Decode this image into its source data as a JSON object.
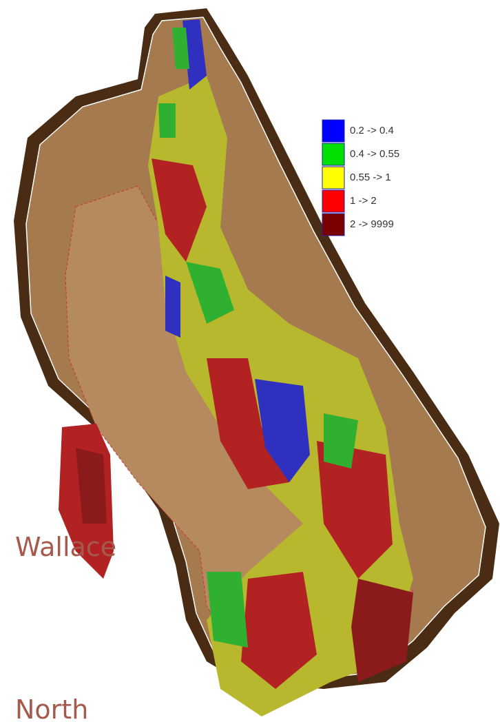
{
  "legend": {
    "items": [
      {
        "label": "0.2 -> 0.4",
        "color": "#0000ff"
      },
      {
        "label": "0.4 -> 0.55",
        "color": "#00e000"
      },
      {
        "label": "0.55 -> 1",
        "color": "#ffff00"
      },
      {
        "label": "1 -> 2",
        "color": "#ff0000"
      },
      {
        "label": "2 -> 9999",
        "color": "#7a0000"
      }
    ]
  },
  "caption": {
    "lines": [
      "Wallace",
      "North"
    ]
  }
}
